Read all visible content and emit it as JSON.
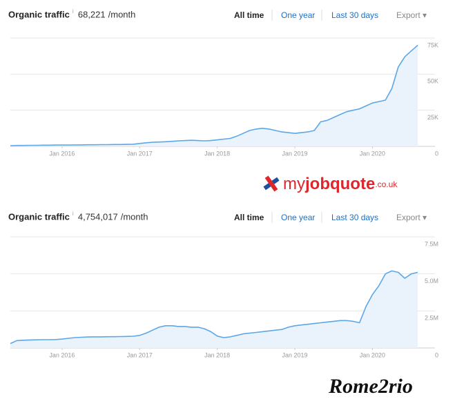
{
  "chart_data": [
    {
      "type": "line",
      "title": "Organic traffic",
      "traffic": "68,221",
      "unit": "/month",
      "range_options": [
        "All time",
        "One year",
        "Last 30 days"
      ],
      "export": "Export ▾",
      "color": "#5ba6e8",
      "fill": "#eaf3fc",
      "grid": true,
      "x": [
        "2015-05",
        "2015-06",
        "2015-07",
        "2015-08",
        "2015-09",
        "2015-10",
        "2015-11",
        "2015-12",
        "2016-01",
        "2016-02",
        "2016-03",
        "2016-04",
        "2016-05",
        "2016-06",
        "2016-07",
        "2016-08",
        "2016-09",
        "2016-10",
        "2016-11",
        "2016-12",
        "2017-01",
        "2017-02",
        "2017-03",
        "2017-04",
        "2017-05",
        "2017-06",
        "2017-07",
        "2017-08",
        "2017-09",
        "2017-10",
        "2017-11",
        "2017-12",
        "2018-01",
        "2018-02",
        "2018-03",
        "2018-04",
        "2018-05",
        "2018-06",
        "2018-07",
        "2018-08",
        "2018-09",
        "2018-10",
        "2018-11",
        "2018-12",
        "2019-01",
        "2019-02",
        "2019-03",
        "2019-04",
        "2019-05",
        "2019-06",
        "2019-07",
        "2019-08",
        "2019-09",
        "2019-10",
        "2019-11",
        "2019-12",
        "2020-01",
        "2020-02",
        "2020-03",
        "2020-04",
        "2020-05",
        "2020-06",
        "2020-07",
        "2020-08"
      ],
      "values": [
        500,
        600,
        600,
        700,
        700,
        800,
        800,
        900,
        900,
        900,
        1000,
        1000,
        1100,
        1100,
        1200,
        1200,
        1300,
        1300,
        1400,
        1500,
        2000,
        2500,
        2800,
        3000,
        3200,
        3500,
        3800,
        4000,
        4200,
        4000,
        3800,
        4000,
        4500,
        5000,
        5500,
        7000,
        9000,
        11000,
        12000,
        12500,
        12000,
        11000,
        10000,
        9500,
        9000,
        9500,
        10000,
        11000,
        17000,
        18000,
        20000,
        22000,
        24000,
        25000,
        26000,
        28000,
        30000,
        31000,
        32000,
        40000,
        55000,
        62000,
        66000,
        70000
      ],
      "xlim": [
        "2015-05",
        "2020-08"
      ],
      "xticks": [
        {
          "value": "2016-01",
          "label": "Jan 2016"
        },
        {
          "value": "2017-01",
          "label": "Jan 2017"
        },
        {
          "value": "2018-01",
          "label": "Jan 2018"
        },
        {
          "value": "2019-01",
          "label": "Jan 2019"
        },
        {
          "value": "2020-01",
          "label": "Jan 2020"
        }
      ],
      "ylim": [
        0,
        75000
      ],
      "yticks": [
        0,
        {
          "value": 25000,
          "label": "25K"
        },
        {
          "value": 50000,
          "label": "50K"
        },
        {
          "value": 75000,
          "label": "75K"
        }
      ]
    },
    {
      "type": "line",
      "title": "Organic traffic",
      "traffic": "4,754,017",
      "unit": "/month",
      "range_options": [
        "All time",
        "One year",
        "Last 30 days"
      ],
      "export": "Export ▾",
      "color": "#5ba6e8",
      "fill": "#eaf3fc",
      "grid": true,
      "x": [
        "2015-05",
        "2015-06",
        "2015-07",
        "2015-08",
        "2015-09",
        "2015-10",
        "2015-11",
        "2015-12",
        "2016-01",
        "2016-02",
        "2016-03",
        "2016-04",
        "2016-05",
        "2016-06",
        "2016-07",
        "2016-08",
        "2016-09",
        "2016-10",
        "2016-11",
        "2016-12",
        "2017-01",
        "2017-02",
        "2017-03",
        "2017-04",
        "2017-05",
        "2017-06",
        "2017-07",
        "2017-08",
        "2017-09",
        "2017-10",
        "2017-11",
        "2017-12",
        "2018-01",
        "2018-02",
        "2018-03",
        "2018-04",
        "2018-05",
        "2018-06",
        "2018-07",
        "2018-08",
        "2018-09",
        "2018-10",
        "2018-11",
        "2018-12",
        "2019-01",
        "2019-02",
        "2019-03",
        "2019-04",
        "2019-05",
        "2019-06",
        "2019-07",
        "2019-08",
        "2019-09",
        "2019-10",
        "2019-11",
        "2019-12",
        "2020-01",
        "2020-02",
        "2020-03",
        "2020-04",
        "2020-05",
        "2020-06",
        "2020-07",
        "2020-08"
      ],
      "values": [
        300000,
        500000,
        520000,
        540000,
        550000,
        560000,
        560000,
        570000,
        600000,
        650000,
        700000,
        720000,
        740000,
        750000,
        750000,
        760000,
        760000,
        770000,
        780000,
        790000,
        850000,
        1000000,
        1200000,
        1400000,
        1500000,
        1500000,
        1450000,
        1450000,
        1400000,
        1400000,
        1300000,
        1100000,
        800000,
        700000,
        750000,
        850000,
        950000,
        1000000,
        1050000,
        1100000,
        1150000,
        1200000,
        1250000,
        1400000,
        1500000,
        1550000,
        1600000,
        1650000,
        1700000,
        1750000,
        1800000,
        1850000,
        1850000,
        1800000,
        1700000,
        2800000,
        3600000,
        4200000,
        5000000,
        5200000,
        5100000,
        4700000,
        5000000,
        5100000
      ],
      "xlim": [
        "2015-05",
        "2020-08"
      ],
      "xticks": [
        {
          "value": "2016-01",
          "label": "Jan 2016"
        },
        {
          "value": "2017-01",
          "label": "Jan 2017"
        },
        {
          "value": "2018-01",
          "label": "Jan 2018"
        },
        {
          "value": "2019-01",
          "label": "Jan 2019"
        },
        {
          "value": "2020-01",
          "label": "Jan 2020"
        }
      ],
      "ylim": [
        0,
        7500000
      ],
      "yticks": [
        0,
        {
          "value": 2500000,
          "label": "2.5M"
        },
        {
          "value": 5000000,
          "label": "5.0M"
        },
        {
          "value": 7500000,
          "label": "7.5M"
        }
      ]
    }
  ],
  "logos": {
    "myjobquote": {
      "my": "my",
      "jobquote": "jobquote",
      "suffix": ".co.uk"
    },
    "rome2rio": "Rome2rio"
  }
}
